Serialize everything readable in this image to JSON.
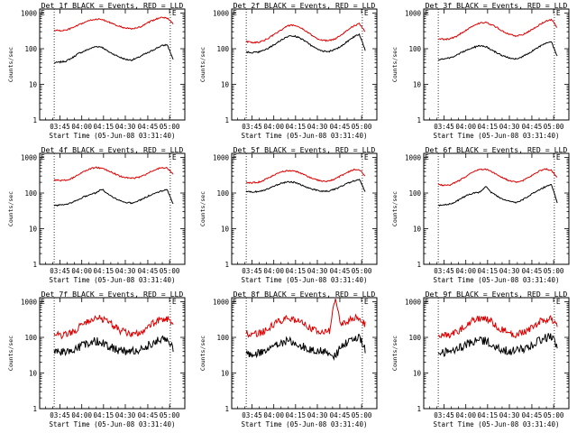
{
  "colors": {
    "events": "#000000",
    "lld": "#dd0000",
    "axis": "#000000"
  },
  "chart_data": [
    {
      "type": "line",
      "title": "Det 1f BLACK = Events, RED = LLD",
      "xlabel": "Start Time (05-Jun-08 03:31:40)",
      "ylabel": "Counts/sec",
      "x_tick_labels": [
        "03:45",
        "04:00",
        "04:15",
        "04:30",
        "04:45",
        "05:00"
      ],
      "y_tick_labels": [
        "1",
        "10",
        "100",
        "1000"
      ],
      "y_scale": "log",
      "ylim": [
        1,
        1300
      ],
      "corner_markers": [
        "E",
        "E"
      ],
      "series": [
        {
          "name": "Events",
          "color": "#000000",
          "noise": 0.02,
          "values": [
            40,
            42,
            45,
            55,
            72,
            85,
            100,
            115,
            112,
            85,
            70,
            58,
            50,
            48,
            55,
            68,
            80,
            100,
            120,
            130,
            50
          ]
        },
        {
          "name": "LLD",
          "color": "#dd0000",
          "noise": 0.02,
          "values": [
            330,
            320,
            330,
            380,
            450,
            540,
            620,
            680,
            660,
            580,
            480,
            420,
            380,
            360,
            380,
            450,
            560,
            660,
            780,
            720,
            500
          ]
        }
      ]
    },
    {
      "type": "line",
      "title": "Det 2f BLACK = Events, RED = LLD",
      "xlabel": "Start Time (05-Jun-08 03:31:40)",
      "ylabel": "Counts/sec",
      "x_tick_labels": [
        "03:45",
        "04:00",
        "04:15",
        "04:30",
        "04:45",
        "05:00"
      ],
      "y_tick_labels": [
        "1",
        "10",
        "100",
        "1000"
      ],
      "y_scale": "log",
      "ylim": [
        1,
        1300
      ],
      "corner_markers": [
        "E",
        "E"
      ],
      "series": [
        {
          "name": "Events",
          "color": "#000000",
          "noise": 0.02,
          "values": [
            80,
            78,
            80,
            90,
            110,
            140,
            180,
            220,
            230,
            200,
            160,
            120,
            95,
            85,
            85,
            95,
            120,
            160,
            210,
            260,
            90
          ]
        },
        {
          "name": "LLD",
          "color": "#dd0000",
          "noise": 0.02,
          "values": [
            160,
            150,
            150,
            170,
            210,
            270,
            350,
            440,
            460,
            400,
            310,
            240,
            190,
            170,
            170,
            190,
            250,
            330,
            430,
            500,
            300
          ]
        }
      ]
    },
    {
      "type": "line",
      "title": "Det 3f BLACK = Events, RED = LLD",
      "xlabel": "Start Time (05-Jun-08 03:31:40)",
      "ylabel": "Counts/sec",
      "x_tick_labels": [
        "03:45",
        "04:00",
        "04:15",
        "04:30",
        "04:45",
        "05:00"
      ],
      "y_tick_labels": [
        "1",
        "10",
        "100",
        "1000"
      ],
      "y_scale": "log",
      "ylim": [
        1,
        1300
      ],
      "corner_markers": [
        "E",
        "E"
      ],
      "series": [
        {
          "name": "Events",
          "color": "#000000",
          "noise": 0.02,
          "values": [
            50,
            52,
            55,
            65,
            80,
            95,
            110,
            120,
            115,
            90,
            75,
            62,
            55,
            52,
            58,
            72,
            90,
            115,
            140,
            160,
            60
          ]
        },
        {
          "name": "LLD",
          "color": "#dd0000",
          "noise": 0.02,
          "values": [
            190,
            185,
            190,
            220,
            280,
            360,
            450,
            530,
            540,
            470,
            380,
            300,
            250,
            230,
            240,
            290,
            370,
            470,
            590,
            650,
            400
          ]
        }
      ]
    },
    {
      "type": "line",
      "title": "Det 4f BLACK = Events, RED = LLD",
      "xlabel": "Start Time (05-Jun-08 03:31:40)",
      "ylabel": "Counts/sec",
      "x_tick_labels": [
        "03:45",
        "04:00",
        "04:15",
        "04:30",
        "04:45",
        "05:00"
      ],
      "y_tick_labels": [
        "1",
        "10",
        "100",
        "1000"
      ],
      "y_scale": "log",
      "ylim": [
        1,
        1300
      ],
      "corner_markers": [
        "E",
        "E"
      ],
      "series": [
        {
          "name": "Events",
          "color": "#000000",
          "noise": 0.02,
          "values": [
            45,
            46,
            48,
            55,
            65,
            78,
            90,
            100,
            130,
            95,
            75,
            62,
            55,
            52,
            58,
            70,
            85,
            100,
            115,
            125,
            50
          ]
        },
        {
          "name": "LLD",
          "color": "#dd0000",
          "noise": 0.02,
          "values": [
            230,
            225,
            230,
            260,
            320,
            400,
            480,
            520,
            500,
            430,
            360,
            300,
            270,
            260,
            270,
            310,
            380,
            450,
            520,
            500,
            350
          ]
        }
      ]
    },
    {
      "type": "line",
      "title": "Det 5f BLACK = Events, RED = LLD",
      "xlabel": "Start Time (05-Jun-08 03:31:40)",
      "ylabel": "Counts/sec",
      "x_tick_labels": [
        "03:45",
        "04:00",
        "04:15",
        "04:30",
        "04:45",
        "05:00"
      ],
      "y_tick_labels": [
        "1",
        "10",
        "100",
        "1000"
      ],
      "y_scale": "log",
      "ylim": [
        1,
        1300
      ],
      "corner_markers": [
        "E",
        "E"
      ],
      "series": [
        {
          "name": "Events",
          "color": "#000000",
          "noise": 0.02,
          "values": [
            110,
            108,
            110,
            120,
            140,
            165,
            190,
            205,
            200,
            175,
            150,
            130,
            118,
            112,
            115,
            130,
            155,
            185,
            220,
            240,
            110
          ]
        },
        {
          "name": "LLD",
          "color": "#dd0000",
          "noise": 0.02,
          "values": [
            200,
            195,
            200,
            230,
            280,
            340,
            400,
            430,
            420,
            370,
            310,
            260,
            230,
            215,
            220,
            250,
            310,
            380,
            450,
            460,
            300
          ]
        }
      ]
    },
    {
      "type": "line",
      "title": "Det 6f BLACK = Events, RED = LLD",
      "xlabel": "Start Time (05-Jun-08 03:31:40)",
      "ylabel": "Counts/sec",
      "x_tick_labels": [
        "03:45",
        "04:00",
        "04:15",
        "04:30",
        "04:45",
        "05:00"
      ],
      "y_tick_labels": [
        "1",
        "10",
        "100",
        "1000"
      ],
      "y_scale": "log",
      "ylim": [
        1,
        1300
      ],
      "corner_markers": [
        "E",
        "E"
      ],
      "series": [
        {
          "name": "Events",
          "color": "#000000",
          "noise": 0.02,
          "values": [
            45,
            46,
            50,
            58,
            72,
            88,
            100,
            105,
            150,
            100,
            80,
            65,
            58,
            55,
            62,
            78,
            100,
            125,
            150,
            170,
            55
          ]
        },
        {
          "name": "LLD",
          "color": "#dd0000",
          "noise": 0.02,
          "values": [
            170,
            165,
            170,
            200,
            250,
            320,
            400,
            460,
            460,
            400,
            320,
            260,
            220,
            205,
            215,
            260,
            330,
            410,
            480,
            430,
            280
          ]
        }
      ]
    },
    {
      "type": "line",
      "title": "Det 7f BLACK = Events, RED = LLD",
      "xlabel": "Start Time (05-Jun-08 03:31:40)",
      "ylabel": "Counts/sec",
      "x_tick_labels": [
        "03:45",
        "04:00",
        "04:15",
        "04:30",
        "04:45",
        "05:00"
      ],
      "y_tick_labels": [
        "1",
        "10",
        "100",
        "1000"
      ],
      "y_scale": "log",
      "ylim": [
        1,
        1300
      ],
      "corner_markers": [
        "E",
        "E"
      ],
      "series": [
        {
          "name": "Events",
          "color": "#000000",
          "noise": 0.12,
          "values": [
            40,
            38,
            40,
            45,
            52,
            62,
            75,
            80,
            72,
            60,
            48,
            42,
            40,
            40,
            44,
            52,
            62,
            75,
            90,
            100,
            50
          ]
        },
        {
          "name": "LLD",
          "color": "#dd0000",
          "noise": 0.1,
          "values": [
            120,
            115,
            120,
            140,
            180,
            240,
            310,
            360,
            340,
            280,
            210,
            160,
            135,
            125,
            130,
            160,
            210,
            270,
            330,
            340,
            200
          ]
        }
      ]
    },
    {
      "type": "line",
      "title": "Det 8f BLACK = Events, RED = LLD",
      "xlabel": "Start Time (05-Jun-08 03:31:40)",
      "ylabel": "Counts/sec",
      "x_tick_labels": [
        "03:45",
        "04:00",
        "04:15",
        "04:30",
        "04:45",
        "05:00"
      ],
      "y_tick_labels": [
        "1",
        "10",
        "100",
        "1000"
      ],
      "y_scale": "log",
      "ylim": [
        1,
        1300
      ],
      "corner_markers": [
        "E",
        "E"
      ],
      "series": [
        {
          "name": "Events",
          "color": "#000000",
          "noise": 0.12,
          "values": [
            35,
            34,
            36,
            42,
            50,
            60,
            72,
            80,
            75,
            62,
            50,
            44,
            42,
            42,
            35,
            30,
            60,
            75,
            90,
            100,
            45
          ]
        },
        {
          "name": "LLD",
          "color": "#dd0000",
          "noise": 0.1,
          "values": [
            130,
            125,
            130,
            150,
            190,
            250,
            310,
            340,
            320,
            270,
            210,
            170,
            150,
            145,
            150,
            1300,
            210,
            280,
            350,
            360,
            220
          ]
        }
      ]
    },
    {
      "type": "line",
      "title": "Det 9f BLACK = Events, RED = LLD",
      "xlabel": "Start Time (05-Jun-08 03:31:40)",
      "ylabel": "Counts/sec",
      "x_tick_labels": [
        "03:45",
        "04:00",
        "04:15",
        "04:30",
        "04:45",
        "05:00"
      ],
      "y_tick_labels": [
        "1",
        "10",
        "100",
        "1000"
      ],
      "y_scale": "log",
      "ylim": [
        1,
        1300
      ],
      "corner_markers": [
        "E",
        "E"
      ],
      "series": [
        {
          "name": "Events",
          "color": "#000000",
          "noise": 0.12,
          "values": [
            40,
            38,
            40,
            46,
            55,
            66,
            78,
            85,
            78,
            64,
            52,
            45,
            42,
            42,
            46,
            55,
            66,
            80,
            95,
            110,
            50
          ]
        },
        {
          "name": "LLD",
          "color": "#dd0000",
          "noise": 0.1,
          "values": [
            120,
            115,
            120,
            140,
            180,
            240,
            310,
            350,
            330,
            270,
            200,
            155,
            130,
            122,
            128,
            160,
            210,
            270,
            320,
            330,
            190
          ]
        }
      ]
    }
  ]
}
